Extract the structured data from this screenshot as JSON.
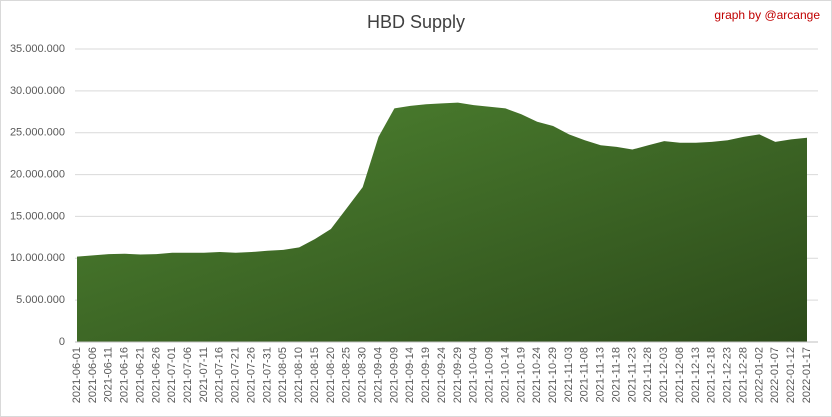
{
  "chart_data": {
    "type": "area",
    "title": "HBD Supply",
    "annotation": "graph by @arcange",
    "color": "#4f8531",
    "categories": [
      "2021-06-01",
      "2021-06-06",
      "2021-06-11",
      "2021-06-16",
      "2021-06-21",
      "2021-06-26",
      "2021-07-01",
      "2021-07-06",
      "2021-07-11",
      "2021-07-16",
      "2021-07-21",
      "2021-07-26",
      "2021-07-31",
      "2021-08-05",
      "2021-08-10",
      "2021-08-15",
      "2021-08-20",
      "2021-08-25",
      "2021-08-30",
      "2021-09-04",
      "2021-09-09",
      "2021-09-14",
      "2021-09-19",
      "2021-09-24",
      "2021-09-29",
      "2021-10-04",
      "2021-10-09",
      "2021-10-14",
      "2021-10-19",
      "2021-10-24",
      "2021-10-29",
      "2021-11-03",
      "2021-11-08",
      "2021-11-13",
      "2021-11-18",
      "2021-11-23",
      "2021-11-28",
      "2021-12-03",
      "2021-12-08",
      "2021-12-13",
      "2021-12-18",
      "2021-12-23",
      "2021-12-28",
      "2022-01-02",
      "2022-01-07",
      "2022-01-12",
      "2022-01-17"
    ],
    "values": [
      10200000,
      10350000,
      10500000,
      10550000,
      10450000,
      10500000,
      10650000,
      10650000,
      10650000,
      10750000,
      10650000,
      10750000,
      10900000,
      11000000,
      11300000,
      12300000,
      13500000,
      16000000,
      18500000,
      24500000,
      27900000,
      28200000,
      28400000,
      28500000,
      28600000,
      28300000,
      28100000,
      27900000,
      27200000,
      26300000,
      25800000,
      24800000,
      24100000,
      23500000,
      23300000,
      23000000,
      23500000,
      24000000,
      23800000,
      23800000,
      23900000,
      24100000,
      24500000,
      24800000,
      23900000,
      24200000,
      24400000
    ],
    "ylim": [
      0,
      35000000
    ],
    "yticks": [
      0,
      {
        "value": 5000000,
        "label": "5.000.000"
      },
      {
        "value": 10000000,
        "label": "10.000.000"
      },
      {
        "value": 15000000,
        "label": "15.000.000"
      },
      {
        "value": 20000000,
        "label": "20.000.000"
      },
      {
        "value": 25000000,
        "label": "25.000.000"
      },
      {
        "value": 30000000,
        "label": "30.000.000"
      },
      {
        "value": 35000000,
        "label": "35.000.000"
      }
    ],
    "grid": true
  }
}
